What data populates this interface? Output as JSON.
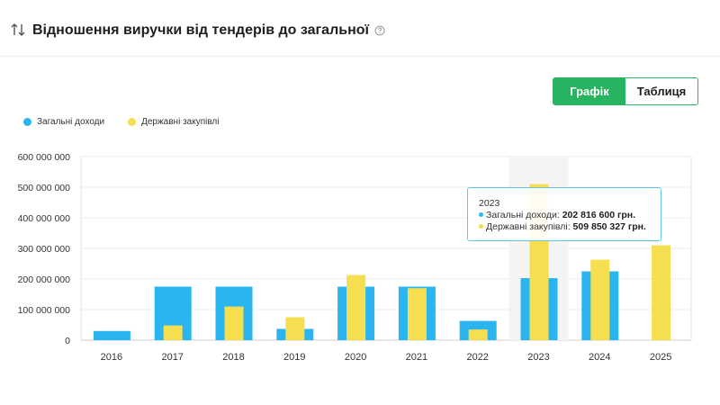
{
  "header": {
    "title": "Відношення виручки від тендерів до загальної",
    "sort_icon": "sort-arrows-icon",
    "help_icon": "question-circle-icon"
  },
  "view_toggle": {
    "chart_label": "Графік",
    "table_label": "Таблиця",
    "active": "chart"
  },
  "colors": {
    "accent": "#27b35f",
    "series_total": "#2bb5f0",
    "series_procurement": "#f5de4f",
    "tooltip_border": "#5ec8e6"
  },
  "tooltip": {
    "year": "2023",
    "row1_label": "Загальні доходи: ",
    "row1_value": "202 816 600 грн.",
    "row2_label": "Державні закупівлі: ",
    "row2_value": "509 850 327 грн."
  },
  "chart_data": {
    "type": "bar",
    "title": "",
    "xlabel": "",
    "ylabel": "",
    "categories": [
      "2016",
      "2017",
      "2018",
      "2019",
      "2020",
      "2021",
      "2022",
      "2023",
      "2024",
      "2025"
    ],
    "series": [
      {
        "name": "Загальні доходи",
        "color": "#2bb5f0",
        "values": [
          30000000,
          175000000,
          175000000,
          37000000,
          175000000,
          175000000,
          63000000,
          202816600,
          225000000,
          0
        ]
      },
      {
        "name": "Державні закупівлі",
        "color": "#f5de4f",
        "values": [
          0,
          48000000,
          110000000,
          75000000,
          213000000,
          170000000,
          35000000,
          509850327,
          263000000,
          310000000
        ]
      }
    ],
    "ylim": [
      0,
      600000000
    ],
    "yticks": [
      0,
      100000000,
      200000000,
      300000000,
      400000000,
      500000000,
      600000000
    ],
    "ytick_labels": [
      "0",
      "100 000 000",
      "200 000 000",
      "300 000 000",
      "400 000 000",
      "500 000 000",
      "600 000 000"
    ],
    "grid": true,
    "legend_position": "top-left",
    "highlighted_category": "2023"
  }
}
